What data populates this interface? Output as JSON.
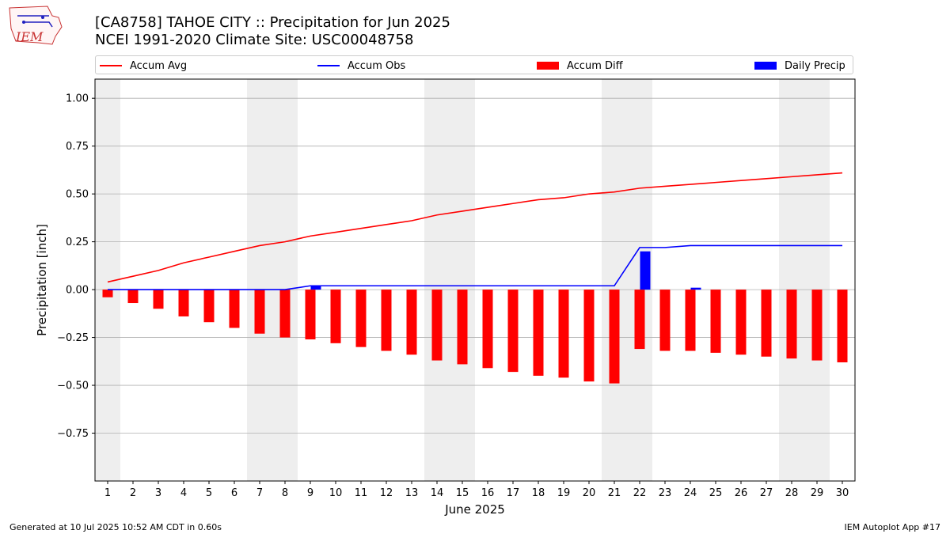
{
  "header": {
    "title_line1": "[CA8758] TAHOE CITY :: Precipitation for Jun 2025",
    "title_line2": "NCEI 1991-2020 Climate Site: USC00048758",
    "logo_text": "IEM"
  },
  "legend": {
    "accum_avg": "Accum Avg",
    "accum_obs": "Accum Obs",
    "accum_diff": "Accum Diff",
    "daily_precip": "Daily Precip"
  },
  "footer": {
    "left": "Generated at 10 Jul 2025 10:52 AM CDT in 0.60s",
    "right": "IEM Autoplot App #17"
  },
  "colors": {
    "avg": "#ff0000",
    "obs": "#0000ff",
    "diff": "#ff0000",
    "daily": "#0000ff",
    "weekend_shade": "#eeeeee",
    "grid": "#b0b0b0"
  },
  "chart_data": {
    "type": "bar",
    "xlabel": "June 2025",
    "ylabel": "Precipitation [inch]",
    "ylim": [
      -1.0,
      1.1
    ],
    "yticks": [
      -0.75,
      -0.5,
      -0.25,
      0.0,
      0.25,
      0.5,
      0.75,
      1.0
    ],
    "ytick_labels": [
      "−0.75",
      "−0.50",
      "−0.25",
      "0.00",
      "0.25",
      "0.50",
      "0.75",
      "1.00"
    ],
    "grid": "horizontal",
    "legend_position": "top",
    "days": [
      1,
      2,
      3,
      4,
      5,
      6,
      7,
      8,
      9,
      10,
      11,
      12,
      13,
      14,
      15,
      16,
      17,
      18,
      19,
      20,
      21,
      22,
      23,
      24,
      25,
      26,
      27,
      28,
      29,
      30
    ],
    "weekend_days": [
      1,
      7,
      8,
      14,
      15,
      21,
      22,
      28,
      29
    ],
    "series": [
      {
        "name": "Accum Avg",
        "kind": "line",
        "values": [
          0.04,
          0.07,
          0.1,
          0.14,
          0.17,
          0.2,
          0.23,
          0.25,
          0.28,
          0.3,
          0.32,
          0.34,
          0.36,
          0.39,
          0.41,
          0.43,
          0.45,
          0.47,
          0.48,
          0.5,
          0.51,
          0.53,
          0.54,
          0.55,
          0.56,
          0.57,
          0.58,
          0.59,
          0.6,
          0.61
        ]
      },
      {
        "name": "Accum Obs",
        "kind": "line",
        "values": [
          0.0,
          0.0,
          0.0,
          0.0,
          0.0,
          0.0,
          0.0,
          0.0,
          0.02,
          0.02,
          0.02,
          0.02,
          0.02,
          0.02,
          0.02,
          0.02,
          0.02,
          0.02,
          0.02,
          0.02,
          0.02,
          0.22,
          0.22,
          0.23,
          0.23,
          0.23,
          0.23,
          0.23,
          0.23,
          0.23
        ]
      },
      {
        "name": "Accum Diff",
        "kind": "bar",
        "values": [
          -0.04,
          -0.07,
          -0.1,
          -0.14,
          -0.17,
          -0.2,
          -0.23,
          -0.25,
          -0.26,
          -0.28,
          -0.3,
          -0.32,
          -0.34,
          -0.37,
          -0.39,
          -0.41,
          -0.43,
          -0.45,
          -0.46,
          -0.48,
          -0.49,
          -0.31,
          -0.32,
          -0.32,
          -0.33,
          -0.34,
          -0.35,
          -0.36,
          -0.37,
          -0.38
        ]
      },
      {
        "name": "Daily Precip",
        "kind": "bar",
        "values": [
          0,
          0,
          0,
          0,
          0,
          0,
          0,
          0,
          0.02,
          0,
          0,
          0,
          0,
          0,
          0,
          0,
          0,
          0,
          0,
          0,
          0,
          0.2,
          0,
          0.01,
          0,
          0,
          0,
          0,
          0,
          0
        ]
      }
    ]
  }
}
